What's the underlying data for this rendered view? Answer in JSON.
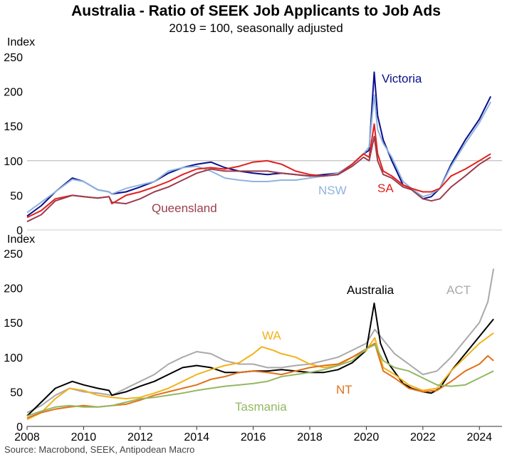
{
  "title": "Australia - Ratio of SEEK Job Applicants to Job Ads",
  "subtitle": "2019 = 100, seasonally adjusted",
  "source": "Source: Macrobond, SEEK, Antipodean Macro",
  "chart_data": [
    {
      "type": "line",
      "ylabel": "Index",
      "ylim": [
        0,
        250
      ],
      "yticks": [
        "0",
        "50",
        "100",
        "150",
        "200",
        "250"
      ],
      "xlim": [
        2008,
        2024.8
      ],
      "reference_line": 100,
      "series": [
        {
          "name": "Victoria",
          "color": "#0a0f8c",
          "x": [
            2008,
            2008.5,
            2009,
            2009.6,
            2010,
            2010.5,
            2010.9,
            2011,
            2011.5,
            2012,
            2012.5,
            2013,
            2013.5,
            2014,
            2014.5,
            2015,
            2015.5,
            2016,
            2016.5,
            2017,
            2017.5,
            2018,
            2018.5,
            2019,
            2019.5,
            2019.9,
            2020.1,
            2020.28,
            2020.4,
            2020.6,
            2020.9,
            2021.3,
            2021.6,
            2022,
            2022.3,
            2022.6,
            2023,
            2023.5,
            2024,
            2024.4
          ],
          "y": [
            20,
            35,
            55,
            75,
            70,
            58,
            55,
            52,
            55,
            62,
            70,
            82,
            90,
            95,
            98,
            90,
            85,
            82,
            80,
            82,
            80,
            78,
            80,
            82,
            95,
            110,
            115,
            228,
            165,
            130,
            100,
            65,
            60,
            45,
            48,
            60,
            95,
            130,
            160,
            193
          ]
        },
        {
          "name": "NSW",
          "color": "#8fb4dc",
          "x": [
            2008,
            2008.5,
            2009,
            2009.6,
            2010,
            2010.5,
            2010.9,
            2011,
            2011.5,
            2012,
            2012.5,
            2013,
            2013.5,
            2014,
            2014.5,
            2015,
            2015.5,
            2016,
            2016.5,
            2017,
            2017.5,
            2018,
            2018.5,
            2019,
            2019.5,
            2019.9,
            2020.1,
            2020.28,
            2020.4,
            2020.6,
            2020.9,
            2021.3,
            2021.6,
            2022,
            2022.3,
            2022.6,
            2023,
            2023.5,
            2024,
            2024.4
          ],
          "y": [
            25,
            40,
            55,
            73,
            70,
            58,
            55,
            52,
            60,
            65,
            70,
            85,
            90,
            92,
            85,
            75,
            72,
            70,
            70,
            72,
            72,
            75,
            78,
            82,
            95,
            110,
            120,
            195,
            145,
            125,
            105,
            70,
            60,
            48,
            52,
            60,
            92,
            125,
            155,
            185
          ]
        },
        {
          "name": "SA",
          "color": "#e2201c",
          "x": [
            2008,
            2008.5,
            2009,
            2009.6,
            2010,
            2010.5,
            2010.9,
            2011,
            2011.5,
            2012,
            2012.5,
            2013,
            2013.5,
            2014,
            2014.5,
            2015,
            2015.5,
            2016,
            2016.5,
            2017,
            2017.5,
            2018,
            2018.5,
            2019,
            2019.5,
            2019.9,
            2020.1,
            2020.28,
            2020.4,
            2020.6,
            2020.9,
            2021.3,
            2021.6,
            2022,
            2022.3,
            2022.6,
            2023,
            2023.5,
            2024,
            2024.4
          ],
          "y": [
            18,
            28,
            45,
            50,
            48,
            46,
            48,
            38,
            50,
            55,
            62,
            70,
            80,
            88,
            90,
            88,
            92,
            98,
            100,
            95,
            85,
            80,
            78,
            80,
            95,
            110,
            105,
            153,
            110,
            85,
            78,
            65,
            60,
            55,
            55,
            60,
            78,
            88,
            100,
            110
          ]
        },
        {
          "name": "Queensland",
          "color": "#9b3d4e",
          "x": [
            2008,
            2008.5,
            2009,
            2009.6,
            2010,
            2010.5,
            2010.9,
            2011,
            2011.5,
            2012,
            2012.5,
            2013,
            2013.5,
            2014,
            2014.5,
            2015,
            2015.5,
            2016,
            2016.5,
            2017,
            2017.5,
            2018,
            2018.5,
            2019,
            2019.5,
            2019.9,
            2020.1,
            2020.28,
            2020.4,
            2020.6,
            2020.9,
            2021.3,
            2021.6,
            2022,
            2022.3,
            2022.6,
            2023,
            2023.5,
            2024,
            2024.4
          ],
          "y": [
            12,
            22,
            42,
            50,
            48,
            46,
            48,
            40,
            38,
            45,
            55,
            62,
            72,
            82,
            88,
            85,
            85,
            85,
            85,
            82,
            80,
            78,
            78,
            80,
            92,
            105,
            100,
            135,
            100,
            80,
            75,
            62,
            58,
            45,
            42,
            45,
            62,
            78,
            95,
            105
          ]
        }
      ],
      "annotations": [
        "Victoria",
        "NSW",
        "SA",
        "Queensland"
      ]
    },
    {
      "type": "line",
      "ylabel": "Index",
      "ylim": [
        0,
        250
      ],
      "yticks": [
        "0",
        "50",
        "100",
        "150",
        "200",
        "250"
      ],
      "xlim": [
        2008,
        2024.8
      ],
      "xticks": [
        "2008",
        "2010",
        "2012",
        "2014",
        "2016",
        "2018",
        "2020",
        "2022",
        "2024"
      ],
      "series": [
        {
          "name": "ACT",
          "color": "#a9a9a9",
          "x": [
            2008,
            2008.5,
            2009,
            2009.5,
            2010,
            2010.5,
            2011,
            2011.5,
            2012,
            2012.5,
            2013,
            2013.5,
            2014,
            2014.5,
            2015,
            2015.5,
            2016,
            2016.5,
            2017,
            2017.5,
            2018,
            2018.5,
            2019,
            2019.5,
            2020,
            2020.3,
            2020.6,
            2021,
            2021.5,
            2022,
            2022.5,
            2023,
            2023.5,
            2024,
            2024.3,
            2024.5
          ],
          "y": [
            20,
            30,
            45,
            55,
            50,
            48,
            45,
            55,
            65,
            75,
            90,
            100,
            108,
            105,
            95,
            90,
            90,
            85,
            85,
            88,
            90,
            95,
            100,
            110,
            120,
            140,
            125,
            105,
            90,
            75,
            80,
            100,
            125,
            150,
            180,
            228
          ]
        },
        {
          "name": "Australia",
          "color": "#000000",
          "x": [
            2008,
            2008.5,
            2009,
            2009.6,
            2010,
            2010.5,
            2010.9,
            2011,
            2011.5,
            2012,
            2012.5,
            2013,
            2013.5,
            2014,
            2014.5,
            2015,
            2015.5,
            2016,
            2016.5,
            2017,
            2017.5,
            2018,
            2018.5,
            2019,
            2019.5,
            2020,
            2020.28,
            2020.5,
            2020.8,
            2021.3,
            2021.6,
            2022,
            2022.3,
            2022.6,
            2023,
            2023.5,
            2024,
            2024.5
          ],
          "y": [
            15,
            35,
            55,
            65,
            60,
            55,
            52,
            45,
            50,
            58,
            65,
            75,
            85,
            88,
            85,
            78,
            78,
            80,
            80,
            82,
            80,
            78,
            78,
            82,
            92,
            110,
            178,
            120,
            90,
            62,
            55,
            50,
            48,
            55,
            80,
            105,
            130,
            155
          ]
        },
        {
          "name": "WA",
          "color": "#f2b21b",
          "x": [
            2008,
            2008.5,
            2009,
            2009.5,
            2010,
            2010.5,
            2011,
            2011.5,
            2012,
            2012.5,
            2013,
            2013.5,
            2014,
            2014.5,
            2015,
            2015.5,
            2016,
            2016.3,
            2016.7,
            2017,
            2017.5,
            2018,
            2018.5,
            2019,
            2019.5,
            2020,
            2020.3,
            2020.6,
            2021,
            2021.5,
            2022,
            2022.5,
            2023,
            2023.5,
            2024,
            2024.5
          ],
          "y": [
            10,
            20,
            40,
            55,
            52,
            45,
            42,
            40,
            42,
            48,
            55,
            65,
            75,
            82,
            88,
            92,
            105,
            115,
            110,
            105,
            100,
            90,
            85,
            88,
            100,
            110,
            128,
            85,
            75,
            60,
            52,
            55,
            80,
            100,
            120,
            135
          ]
        },
        {
          "name": "NT",
          "color": "#e07019",
          "x": [
            2008,
            2008.5,
            2009,
            2009.5,
            2010,
            2010.5,
            2011,
            2011.5,
            2012,
            2012.5,
            2013,
            2013.5,
            2014,
            2014.5,
            2015,
            2015.5,
            2016,
            2016.5,
            2017,
            2017.5,
            2018,
            2018.5,
            2019,
            2019.5,
            2020,
            2020.3,
            2020.6,
            2021,
            2021.5,
            2022,
            2022.5,
            2023,
            2023.5,
            2024,
            2024.3,
            2024.5
          ],
          "y": [
            12,
            20,
            25,
            28,
            30,
            28,
            30,
            32,
            38,
            45,
            50,
            55,
            60,
            68,
            72,
            78,
            80,
            78,
            75,
            80,
            85,
            88,
            90,
            100,
            112,
            120,
            80,
            70,
            55,
            50,
            52,
            65,
            80,
            90,
            102,
            95
          ]
        },
        {
          "name": "Tasmania",
          "color": "#94b861",
          "x": [
            2008,
            2008.5,
            2009,
            2009.5,
            2010,
            2010.5,
            2011,
            2011.5,
            2012,
            2012.5,
            2013,
            2013.5,
            2014,
            2014.5,
            2015,
            2015.5,
            2016,
            2016.5,
            2017,
            2017.5,
            2018,
            2018.5,
            2019,
            2019.5,
            2020,
            2020.3,
            2020.6,
            2021,
            2021.5,
            2022,
            2022.5,
            2023,
            2023.5,
            2024,
            2024.5
          ],
          "y": [
            15,
            22,
            28,
            30,
            28,
            28,
            30,
            35,
            40,
            42,
            45,
            48,
            52,
            55,
            58,
            60,
            62,
            65,
            72,
            75,
            78,
            82,
            88,
            95,
            112,
            118,
            95,
            85,
            80,
            70,
            60,
            58,
            60,
            70,
            80
          ]
        }
      ],
      "annotations": [
        "Australia",
        "ACT",
        "WA",
        "NT",
        "Tasmania"
      ]
    }
  ]
}
